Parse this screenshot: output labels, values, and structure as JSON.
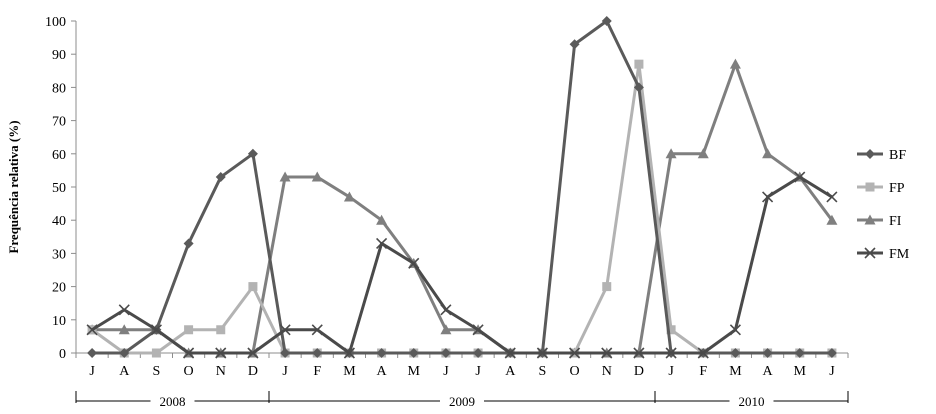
{
  "chart_data": {
    "type": "line",
    "ylabel": "Frequência relativa (%)",
    "ylim": [
      0,
      100
    ],
    "yticks": [
      0,
      10,
      20,
      30,
      40,
      50,
      60,
      70,
      80,
      90,
      100
    ],
    "categories": [
      "J",
      "A",
      "S",
      "O",
      "N",
      "D",
      "J",
      "F",
      "M",
      "A",
      "M",
      "J",
      "J",
      "A",
      "S",
      "O",
      "N",
      "D",
      "J",
      "F",
      "M",
      "A",
      "M",
      "J"
    ],
    "years": [
      {
        "label": "2008",
        "start": 0,
        "end": 5
      },
      {
        "label": "2009",
        "start": 6,
        "end": 17
      },
      {
        "label": "2010",
        "start": 18,
        "end": 23
      }
    ],
    "grid": false,
    "legend_position": "right",
    "series": [
      {
        "name": "BF",
        "marker": "diamond",
        "color": "#5a5a5a",
        "values": [
          0,
          0,
          7,
          33,
          53,
          60,
          0,
          0,
          0,
          0,
          0,
          0,
          0,
          0,
          0,
          93,
          100,
          80,
          0,
          0,
          0,
          0,
          0,
          0
        ]
      },
      {
        "name": "FP",
        "marker": "square",
        "color": "#b3b3b3",
        "values": [
          7,
          0,
          0,
          7,
          7,
          20,
          0,
          0,
          0,
          0,
          0,
          0,
          0,
          0,
          0,
          0,
          20,
          87,
          7,
          0,
          0,
          0,
          0,
          0
        ]
      },
      {
        "name": "FI",
        "marker": "triangle",
        "color": "#7f7f7f",
        "values": [
          7,
          7,
          7,
          0,
          0,
          0,
          53,
          53,
          47,
          40,
          27,
          7,
          7,
          0,
          0,
          0,
          0,
          0,
          60,
          60,
          87,
          60,
          53,
          40
        ]
      },
      {
        "name": "FM",
        "marker": "x",
        "color": "#4a4a4a",
        "values": [
          7,
          13,
          7,
          0,
          0,
          0,
          7,
          7,
          0,
          33,
          27,
          13,
          7,
          0,
          0,
          0,
          0,
          0,
          0,
          0,
          7,
          47,
          53,
          47
        ]
      }
    ]
  }
}
